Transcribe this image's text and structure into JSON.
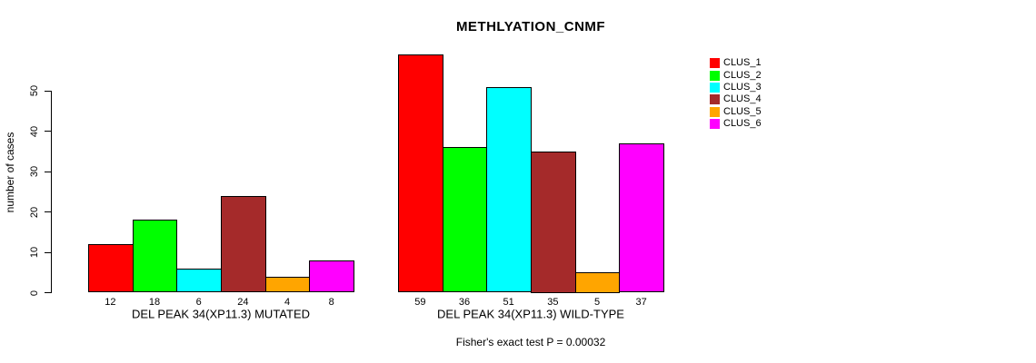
{
  "title": "METHLYATION_CNMF",
  "footer": "Fisher's exact test P = 0.00032",
  "y_axis": {
    "label": "number of cases",
    "ticks": [
      0,
      10,
      20,
      30,
      40,
      50
    ]
  },
  "legend": {
    "entries": [
      {
        "label": "CLUS_1",
        "color": "#FF0000"
      },
      {
        "label": "CLUS_2",
        "color": "#00FF00"
      },
      {
        "label": "CLUS_3",
        "color": "#00FFFF"
      },
      {
        "label": "CLUS_4",
        "color": "#A52A2A"
      },
      {
        "label": "CLUS_5",
        "color": "#FFA500"
      },
      {
        "label": "CLUS_6",
        "color": "#FF00FF"
      }
    ]
  },
  "chart_data": {
    "type": "bar",
    "title": "METHLYATION_CNMF",
    "ylabel": "number of cases",
    "xlabel": "",
    "ylim": [
      0,
      50
    ],
    "grid": false,
    "legend_position": "right",
    "series": [
      "CLUS_1",
      "CLUS_2",
      "CLUS_3",
      "CLUS_4",
      "CLUS_5",
      "CLUS_6"
    ],
    "colors": [
      "#FF0000",
      "#00FF00",
      "#00FFFF",
      "#A52A2A",
      "#FFA500",
      "#FF00FF"
    ],
    "bar_value_labels_shown": true,
    "groups": [
      {
        "label": "DEL PEAK 34(XP11.3) MUTATED",
        "values": [
          12,
          18,
          6,
          24,
          4,
          8
        ]
      },
      {
        "label": "DEL PEAK 34(XP11.3) WILD-TYPE",
        "values": [
          59,
          36,
          51,
          35,
          5,
          37
        ]
      }
    ],
    "annotation": "Fisher's exact test P = 0.00032"
  }
}
